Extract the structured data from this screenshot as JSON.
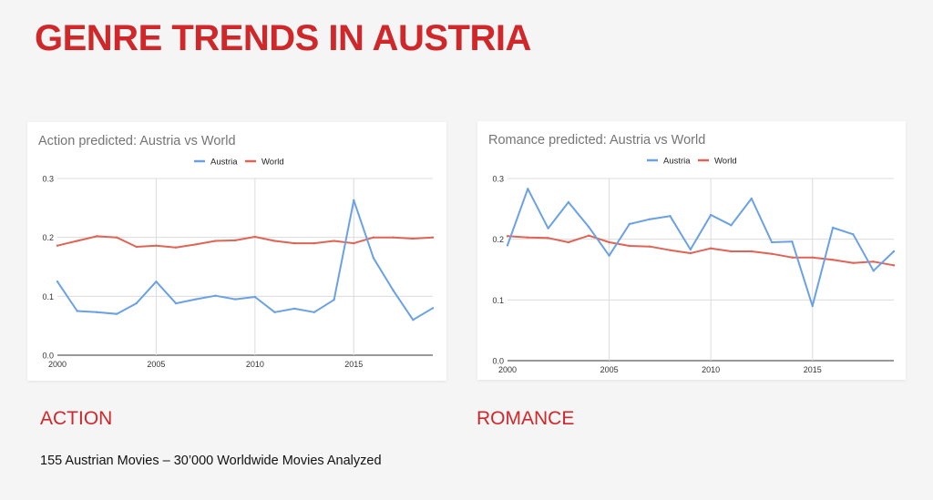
{
  "slide": {
    "title": "GENRE TRENDS IN AUSTRIA",
    "section_labels": [
      "ACTION",
      "ROMANCE"
    ],
    "footnote": "155 Austrian Movies – 30’000 Worldwide Movies Analyzed"
  },
  "colors": {
    "accent": "#d0272a",
    "austria": "#6aa1e6",
    "world": "#e06455",
    "grid": "#dcdcdc",
    "chart_title": "#757575",
    "tick": "#333333"
  },
  "chart_data": [
    {
      "type": "line",
      "title": "Action predicted: Austria vs World",
      "x": [
        2000,
        2001,
        2002,
        2003,
        2004,
        2005,
        2006,
        2007,
        2008,
        2009,
        2010,
        2011,
        2012,
        2013,
        2014,
        2015,
        2016,
        2017,
        2018,
        2019
      ],
      "series": [
        {
          "name": "Austria",
          "values": [
            0.125,
            0.075,
            0.073,
            0.07,
            0.088,
            0.125,
            0.088,
            0.095,
            0.101,
            0.095,
            0.099,
            0.073,
            0.079,
            0.073,
            0.094,
            0.263,
            0.165,
            0.11,
            0.06,
            0.08
          ]
        },
        {
          "name": "World",
          "values": [
            0.186,
            0.194,
            0.202,
            0.2,
            0.184,
            0.186,
            0.183,
            0.188,
            0.194,
            0.195,
            0.201,
            0.194,
            0.19,
            0.19,
            0.194,
            0.19,
            0.2,
            0.2,
            0.198,
            0.2
          ]
        }
      ],
      "xticks": [
        2000,
        2005,
        2010,
        2015
      ],
      "yticks": [
        0.0,
        0.1,
        0.2,
        0.3
      ],
      "ytick_labels": [
        "0.0",
        "0.1",
        "0.2",
        "0.3"
      ],
      "xlim": [
        2000,
        2019
      ],
      "ylim": [
        0,
        0.3
      ],
      "grid": true,
      "legend": "top-center"
    },
    {
      "type": "line",
      "title": "Romance predicted: Austria vs World",
      "x": [
        2000,
        2001,
        2002,
        2003,
        2004,
        2005,
        2006,
        2007,
        2008,
        2009,
        2010,
        2011,
        2012,
        2013,
        2014,
        2015,
        2016,
        2017,
        2018,
        2019
      ],
      "series": [
        {
          "name": "Austria",
          "values": [
            0.19,
            0.283,
            0.218,
            0.261,
            0.22,
            0.173,
            0.225,
            0.233,
            0.238,
            0.183,
            0.24,
            0.223,
            0.267,
            0.195,
            0.196,
            0.09,
            0.219,
            0.208,
            0.148,
            0.18
          ]
        },
        {
          "name": "World",
          "values": [
            0.205,
            0.203,
            0.202,
            0.195,
            0.206,
            0.195,
            0.189,
            0.188,
            0.182,
            0.177,
            0.185,
            0.18,
            0.18,
            0.176,
            0.17,
            0.17,
            0.166,
            0.161,
            0.163,
            0.157
          ]
        }
      ],
      "xticks": [
        2000,
        2005,
        2010,
        2015
      ],
      "yticks": [
        0.0,
        0.1,
        0.2,
        0.3
      ],
      "ytick_labels": [
        "0.0",
        "0.1",
        "0.2",
        "0.3"
      ],
      "xlim": [
        2000,
        2019
      ],
      "ylim": [
        0,
        0.3
      ],
      "grid": true,
      "legend": "top-center"
    }
  ]
}
